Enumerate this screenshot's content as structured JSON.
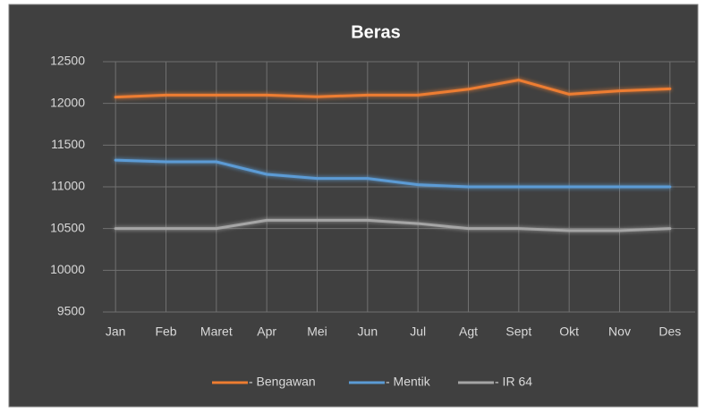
{
  "chart_data": {
    "type": "line",
    "title": "Beras",
    "categories": [
      "Jan",
      "Feb",
      "Maret",
      "Apr",
      "Mei",
      "Jun",
      "Jul",
      "Agt",
      "Sept",
      "Okt",
      "Nov",
      "Des"
    ],
    "series": [
      {
        "name": "- Bengawan",
        "color": "#ed7d31",
        "values": [
          12075,
          12100,
          12100,
          12100,
          12080,
          12100,
          12100,
          12170,
          12280,
          12110,
          12150,
          12175
        ]
      },
      {
        "name": "- Mentik",
        "color": "#5b9bd5",
        "values": [
          11320,
          11300,
          11300,
          11150,
          11100,
          11100,
          11025,
          11000,
          11000,
          11000,
          11000,
          11000
        ]
      },
      {
        "name": "- IR 64",
        "color": "#a5a5a5",
        "values": [
          10500,
          10500,
          10500,
          10600,
          10600,
          10600,
          10560,
          10500,
          10500,
          10475,
          10475,
          10500
        ]
      }
    ],
    "ylim": [
      9500,
      12500
    ],
    "yticks": [
      9500,
      10000,
      10500,
      11000,
      11500,
      12000,
      12500
    ],
    "grid": true,
    "legend": "bottom"
  }
}
